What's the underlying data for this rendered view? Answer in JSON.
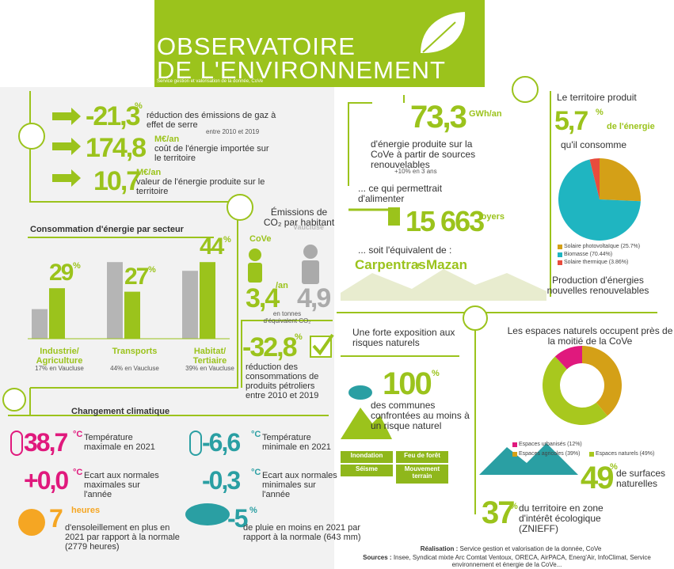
{
  "header": {
    "title_line1": "OBSERVATOIRE",
    "title_line2": "DE L'ENVIRONNEMENT",
    "subtitle": "Service gestion et valorisation de la donnée, CoVe"
  },
  "key_figures": [
    {
      "value": "-21,3",
      "unit": "%",
      "text": "réduction des émissions de gaz à effet de serre",
      "note": "entre 2010 et 2019"
    },
    {
      "value": "174,8",
      "unit": "M€/an",
      "text": "coût de l'énergie importée sur le territoire"
    },
    {
      "value": "10,7",
      "unit": "M€/an",
      "text": "valeur de l'énergie produite sur le territoire"
    }
  ],
  "consumption": {
    "title": "Consommation d'énergie par secteur",
    "sectors": [
      {
        "name": "Industrie/ Agriculture",
        "value": 29,
        "unit": "%",
        "note": "17% en Vaucluse",
        "vaucluse": 17
      },
      {
        "name": "Transports",
        "value": 27,
        "unit": "%",
        "note": "44% en Vaucluse",
        "vaucluse": 44
      },
      {
        "name": "Habitat/ Tertiaire",
        "value": 44,
        "unit": "%",
        "note": "39% en Vaucluse",
        "vaucluse": 39
      }
    ]
  },
  "emissions": {
    "title": "Émissions de CO₂ par habitant",
    "cove_label": "CoVe",
    "vaucluse_label": "Vaucluse",
    "cove_value": "3,4",
    "cove_unit": "/an",
    "vaucluse_value": "4,9",
    "unit_note": "en tonnes d'équivalent CO₂"
  },
  "petroleum": {
    "value": "-32,8",
    "unit": "%",
    "text": "réduction des consommations de produits pétroliers entre 2010 et 2019"
  },
  "climate": {
    "title": "Changement climatique",
    "items": [
      {
        "value": "38,7",
        "unit": "°C",
        "text": "Température maximale en 2021",
        "color": "#e0197d"
      },
      {
        "value": "-6,6",
        "unit": "°C",
        "text": "Température minimale en 2021",
        "color": "#2a9fa3"
      },
      {
        "value": "+0,0",
        "unit": "°C",
        "text": "Ecart aux normales maximales sur l'année",
        "color": "#e0197d"
      },
      {
        "value": "-0,3",
        "unit": "°C",
        "text": "Ecart aux normales minimales sur l'année",
        "color": "#2a9fa3"
      },
      {
        "value": "7",
        "unit": "heures",
        "text": "d'ensoleillement en plus en 2021 par rapport à la normale (2779 heures)",
        "color": "#f5a623"
      },
      {
        "value": "-5",
        "unit": "%",
        "text": "de pluie en moins en 2021 par rapport à la normale (643 mm)",
        "color": "#2a9fa3"
      }
    ]
  },
  "renewables": {
    "value": "73,3",
    "unit": "GWh/an",
    "text": "d'énergie produite sur la CoVe à partir de sources renouvelables",
    "note": "+10% en 3 ans",
    "equiv": "... ce qui permettrait d'alimenter",
    "homes_value": "15 663",
    "homes_unit": "foyers",
    "soit": "... soit l'équivalent de :",
    "town1": "Carpentras",
    "plus": "+",
    "town2": "Mazan"
  },
  "production": {
    "intro": "Le territoire produit",
    "value": "5,7",
    "unit": "%",
    "suffix": "de l'énergie",
    "line2": "qu'il consomme",
    "slices": [
      {
        "label": "Solaire photovoltaïque (25.7%)",
        "value": 25.7,
        "color": "#d4a017"
      },
      {
        "label": "Biomasse (70.44%)",
        "value": 70.44,
        "color": "#1fb5c1"
      },
      {
        "label": "Solaire thermique (3.86%)",
        "value": 3.86,
        "color": "#e84c3d"
      }
    ],
    "caption": "Production d'énergies nouvelles renouvelables"
  },
  "risks": {
    "title": "Une forte exposition aux risques naturels",
    "value": "100",
    "unit": "%",
    "text": "des communes confrontées au moins à un risque naturel",
    "tags": [
      "Inondation",
      "Feu de forêt",
      "Séisme",
      "Mouvement terrain"
    ]
  },
  "natural": {
    "title": "Les espaces naturels occupent près de la moitié de la CoVe",
    "slices": [
      {
        "label": "Espaces urbanisés (12%)",
        "value": 12,
        "color": "#e0197d"
      },
      {
        "label": "Espaces agricoles (39%)",
        "value": 39,
        "color": "#d4a017"
      },
      {
        "label": "Espaces naturels (49%)",
        "value": 49,
        "color": "#a8c81e"
      }
    ],
    "value": "49",
    "unit": "%",
    "text": "de surfaces naturelles",
    "znieff_value": "37",
    "znieff_unit": "%",
    "znieff_text": "du territoire en zone d'intérêt écologique (ZNIEFF)"
  },
  "footer": {
    "realisation_label": "Réalisation :",
    "realisation": "Service gestion et valorisation de la donnée, CoVe",
    "sources_label": "Sources :",
    "sources": "Insee, Syndicat mixte Arc Comtat Ventoux, ORECA, AirPACA, Energ'Air, InfoClimat, Service environnement et énergie de la CoVe..."
  }
}
